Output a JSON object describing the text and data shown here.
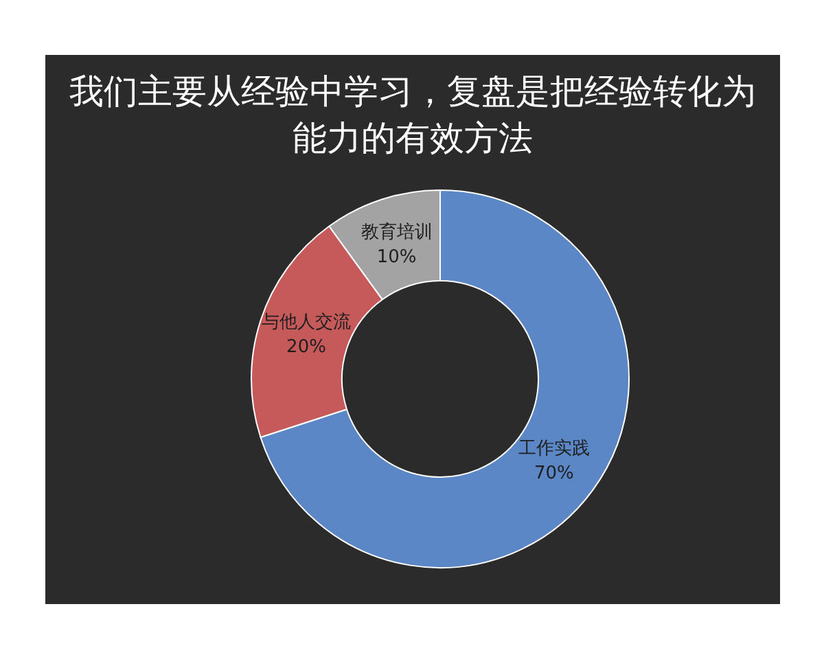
{
  "chart_data": {
    "type": "donut",
    "title": "我们主要从经验中学习，复盘是把经验转化为能力的有效方法",
    "categories": [
      "工作实践",
      "与他人交流",
      "教育培训"
    ],
    "values": [
      70,
      20,
      10
    ],
    "colors": [
      "#5b87c6",
      "#c65a5a",
      "#a3a3a3"
    ],
    "value_labels": [
      "70%",
      "20%",
      "10%"
    ],
    "legend": false
  }
}
